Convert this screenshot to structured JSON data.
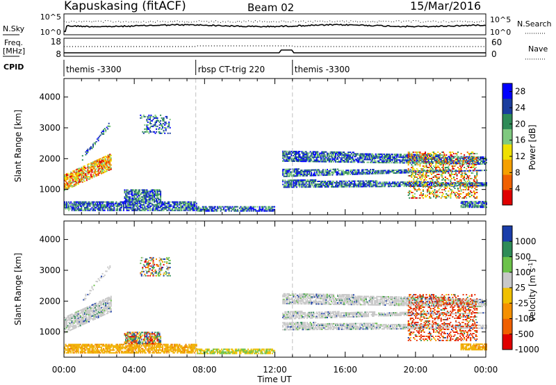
{
  "header": {
    "station": "Kapuskasing (fitACF)",
    "beam": "Beam 02",
    "date": "15/Mar/2016"
  },
  "top_panels": {
    "nsky_label": "N.Sky",
    "nsky_ticks": [
      "10^5",
      "10^0"
    ],
    "nsearch_label": "N.Search",
    "nsearch_ticks": [
      "10^5",
      "10^0"
    ],
    "freq_label": "Freq.",
    "freq_unit": "[MHz]",
    "freq_ticks": [
      "18",
      "8"
    ],
    "nave_label": "Nave",
    "nave_ticks": [
      "60",
      "0"
    ],
    "cpid_label": "CPID",
    "cpid_segments": [
      {
        "label": "themis -3300",
        "start_h": 0,
        "end_h": 7.5
      },
      {
        "label": "rbsp CT-trig 220",
        "start_h": 7.5,
        "end_h": 13
      },
      {
        "label": "themis -3300",
        "start_h": 13,
        "end_h": 24
      }
    ]
  },
  "chart_data": [
    {
      "type": "heatmap",
      "name": "power",
      "ylabel": "Slant Range [km]",
      "xlabel": "Time UT",
      "x_ticks": [
        "00:00",
        "04:00",
        "08:00",
        "12:00",
        "16:00",
        "20:00",
        "00:00"
      ],
      "x_range_hours": [
        0,
        24
      ],
      "y_ticks": [
        1000,
        2000,
        3000,
        4000
      ],
      "y_range_km": [
        180,
        4600
      ],
      "colorbar": {
        "label": "Power [dB]",
        "ticks": [
          "4",
          "8",
          "12",
          "16",
          "20",
          "24",
          "28"
        ],
        "range": [
          0,
          30
        ],
        "colors": [
          "#0000ff",
          "#1a3d9e",
          "#2e8b57",
          "#7fc97f",
          "#f0e000",
          "#f5a000",
          "#f06000",
          "#e00000"
        ]
      },
      "features": [
        {
          "from_h": 0.0,
          "to_h": 2.6,
          "range_km": [
            1000,
            2100
          ],
          "desc": "strong echoes, rising range"
        },
        {
          "from_h": 0.0,
          "to_h": 7.5,
          "range_km": [
            300,
            600
          ],
          "desc": "near-range echoes"
        },
        {
          "from_h": 4.3,
          "to_h": 6.0,
          "range_km": [
            2800,
            3400
          ]
        },
        {
          "from_h": 12.4,
          "to_h": 24.0,
          "range_km": [
            1100,
            2200
          ],
          "desc": "descending traces"
        }
      ]
    },
    {
      "type": "heatmap",
      "name": "velocity",
      "ylabel": "Slant Range [km]",
      "xlabel": "Time UT",
      "x_ticks": [
        "00:00",
        "04:00",
        "08:00",
        "12:00",
        "16:00",
        "20:00",
        "00:00"
      ],
      "x_range_hours": [
        0,
        24
      ],
      "y_ticks": [
        1000,
        2000,
        3000,
        4000
      ],
      "y_range_km": [
        180,
        4600
      ],
      "colorbar": {
        "label": "Velocity [m s",
        "label_sup": "-1",
        "label_end": "]",
        "ticks": [
          "1000",
          "500",
          "100",
          "25",
          "-25",
          "-100",
          "-500",
          "-1000"
        ],
        "colors": [
          "#1a3daa",
          "#2e8b57",
          "#6cc24a",
          "#c8c8c8",
          "#f0c000",
          "#f59000",
          "#f06000",
          "#e00000"
        ]
      }
    }
  ]
}
